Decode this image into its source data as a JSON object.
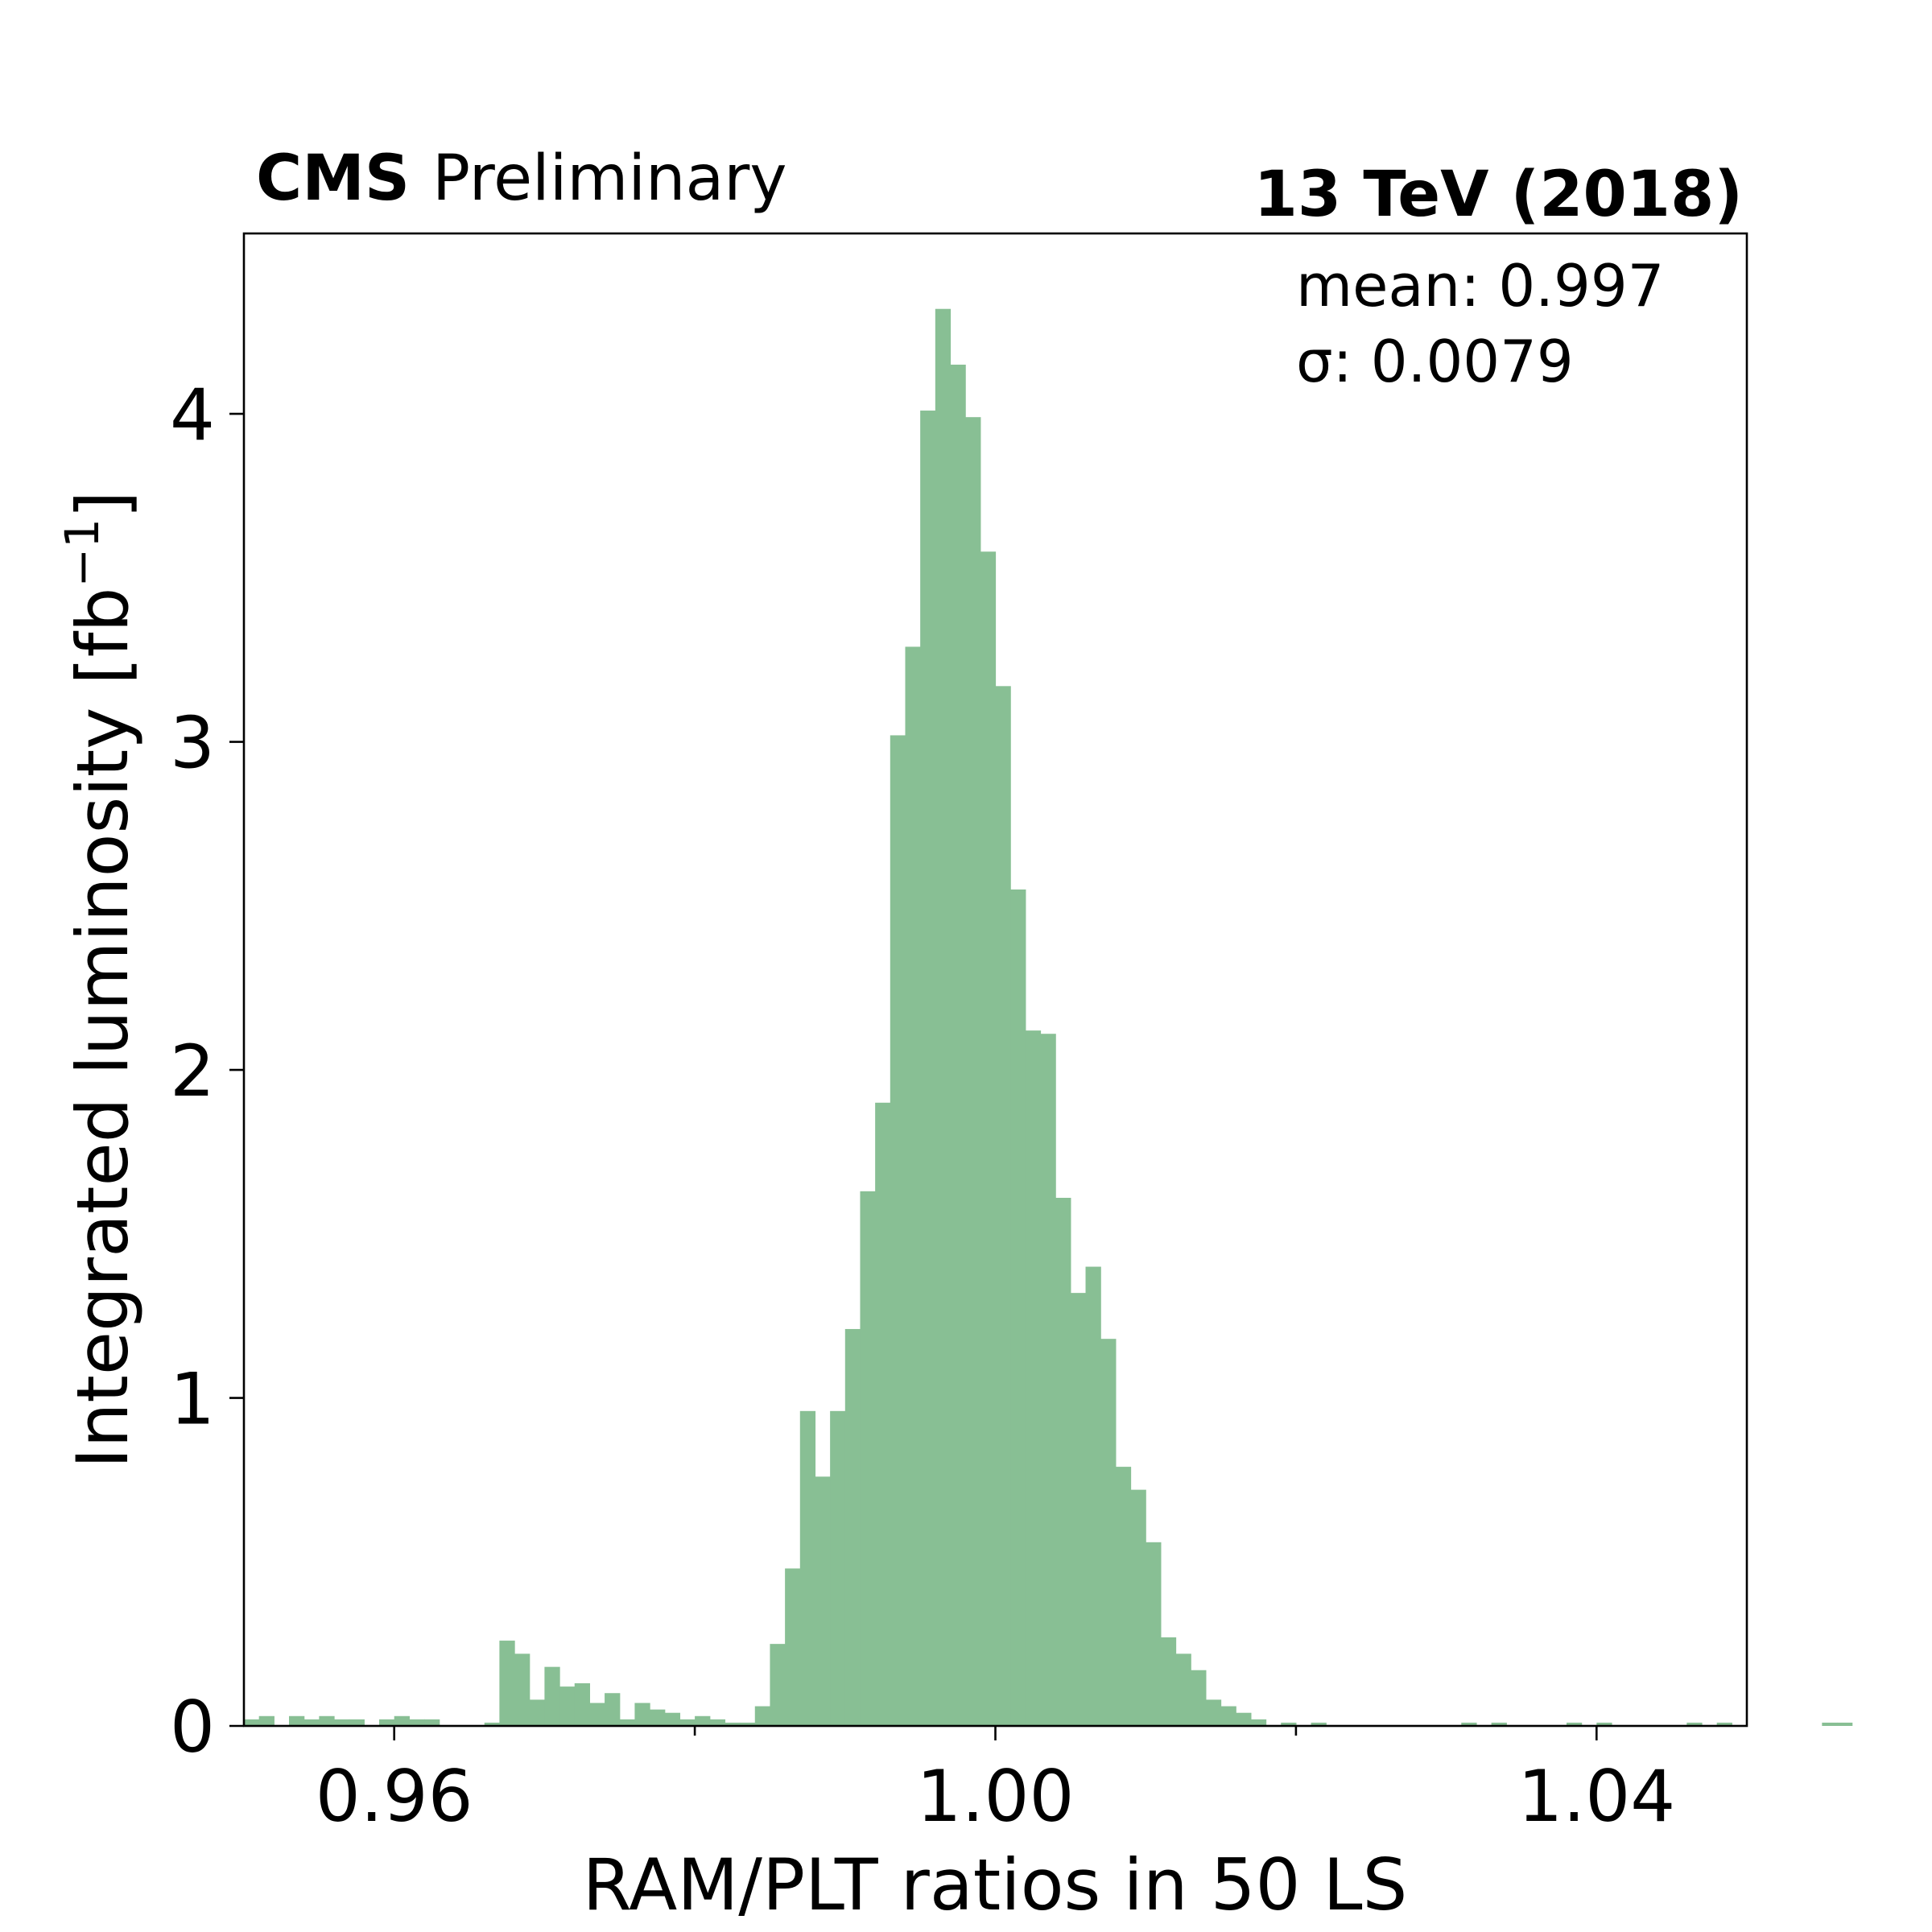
{
  "header": {
    "experiment": "CMS",
    "status": "Preliminary",
    "energy": "13 TeV (2018)"
  },
  "stats": {
    "mean": "mean: 0.997",
    "sigma": "σ: 0.0079"
  },
  "chart_data": {
    "type": "bar",
    "histogram": true,
    "xlabel": "RAM/PLT ratios in 50 LS",
    "ylabel_main": "Integrated luminosity [fb",
    "ylabel_sup": "−1",
    "ylabel_close": "]",
    "xlim": [
      0.95,
      1.05
    ],
    "ylim": [
      0,
      4.55
    ],
    "bin_start": 0.95,
    "bin_width": 0.001,
    "x_ticks": [
      0.96,
      1.0,
      1.04
    ],
    "x_tick_labels": [
      "0.96",
      "1.00",
      "1.04"
    ],
    "x_minor_ticks": [
      0.98,
      1.02
    ],
    "y_ticks": [
      0,
      1,
      2,
      3,
      4
    ],
    "y_tick_labels": [
      "0",
      "1",
      "2",
      "3",
      "4"
    ],
    "bar_color": "#88bf94",
    "values": [
      0.02,
      0.03,
      0.0,
      0.03,
      0.02,
      0.03,
      0.02,
      0.02,
      0.0,
      0.02,
      0.03,
      0.02,
      0.02,
      0.0,
      0.0,
      0.0,
      0.01,
      0.26,
      0.22,
      0.08,
      0.18,
      0.12,
      0.13,
      0.07,
      0.1,
      0.02,
      0.07,
      0.05,
      0.04,
      0.02,
      0.03,
      0.02,
      0.01,
      0.01,
      0.06,
      0.25,
      0.48,
      0.96,
      0.76,
      0.96,
      1.21,
      1.63,
      1.9,
      3.02,
      3.29,
      4.01,
      4.32,
      4.15,
      3.99,
      3.58,
      3.17,
      2.55,
      2.12,
      2.11,
      1.61,
      1.32,
      1.4,
      1.18,
      0.79,
      0.72,
      0.56,
      0.27,
      0.22,
      0.17,
      0.08,
      0.06,
      0.04,
      0.02,
      0.0,
      0.01,
      0.0,
      0.01,
      0.0,
      0.0,
      0.0,
      0.0,
      0.0,
      0.0,
      0.0,
      0.0,
      0.0,
      0.01,
      0.0,
      0.01,
      0.0,
      0.0,
      0.0,
      0.0,
      0.01,
      0.0,
      0.01,
      0.0,
      0.0,
      0.0,
      0.0,
      0.0,
      0.01,
      0.0,
      0.01,
      0.0,
      0.0,
      0.0,
      0.0,
      0.0,
      0.0,
      0.01,
      0.01,
      0.0,
      0.0,
      0.0
    ]
  }
}
